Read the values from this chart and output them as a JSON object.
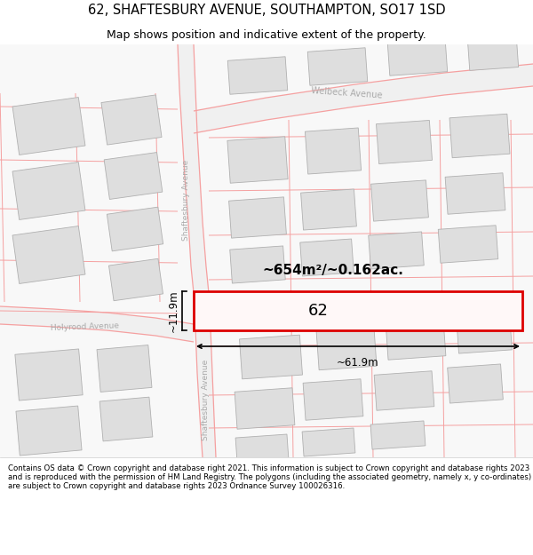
{
  "title_line1": "62, SHAFTESBURY AVENUE, SOUTHAMPTON, SO17 1SD",
  "title_line2": "Map shows position and indicative extent of the property.",
  "footer_text": "Contains OS data © Crown copyright and database right 2021. This information is subject to Crown copyright and database rights 2023 and is reproduced with the permission of HM Land Registry. The polygons (including the associated geometry, namely x, y co-ordinates) are subject to Crown copyright and database rights 2023 Ordnance Survey 100026316.",
  "area_label": "~654m²/~0.162ac.",
  "number_label": "62",
  "width_label": "~61.9m",
  "height_label": "~11.9m",
  "map_bg": "#ffffff",
  "line_color": "#f5a0a0",
  "building_fill": "#dedede",
  "building_stroke": "#b0b0b0",
  "road_label_color": "#aaaaaa",
  "highlight_rect_color": "#dd0000",
  "title_fontsize": 10.5,
  "subtitle_fontsize": 9,
  "footer_fontsize": 6.2
}
